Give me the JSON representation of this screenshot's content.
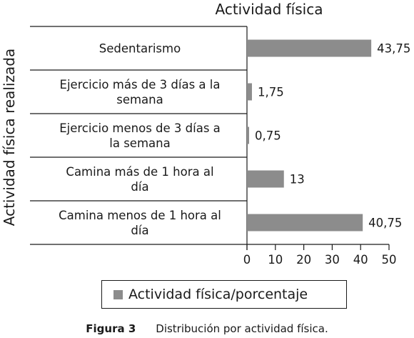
{
  "chart_data": {
    "type": "bar",
    "orientation": "horizontal",
    "title": "Actividad física",
    "ylabel": "Actividad física realizada",
    "xlabel": "",
    "xlim": [
      0,
      50
    ],
    "xticks": [
      "0",
      "10",
      "20",
      "30",
      "40",
      "50"
    ],
    "categories": [
      [
        "Sedentarismo"
      ],
      [
        "Ejercicio más de 3 días a la",
        "semana"
      ],
      [
        "Ejercicio menos de 3 días a",
        "la semana"
      ],
      [
        "Camina más de 1 hora al",
        "día"
      ],
      [
        "Camina menos de 1 hora al",
        "día"
      ]
    ],
    "series": [
      {
        "name": "Actividad física/porcentaje",
        "values": [
          43.75,
          1.75,
          0.75,
          13,
          40.75
        ],
        "labels": [
          "43,75",
          "1,75",
          "0,75",
          "13",
          "40,75"
        ]
      }
    ],
    "legend_position": "bottom",
    "bar_color": "#8c8c8c",
    "grid": false
  },
  "caption": {
    "label": "Figura 3",
    "text": "Distribución por actividad física."
  }
}
